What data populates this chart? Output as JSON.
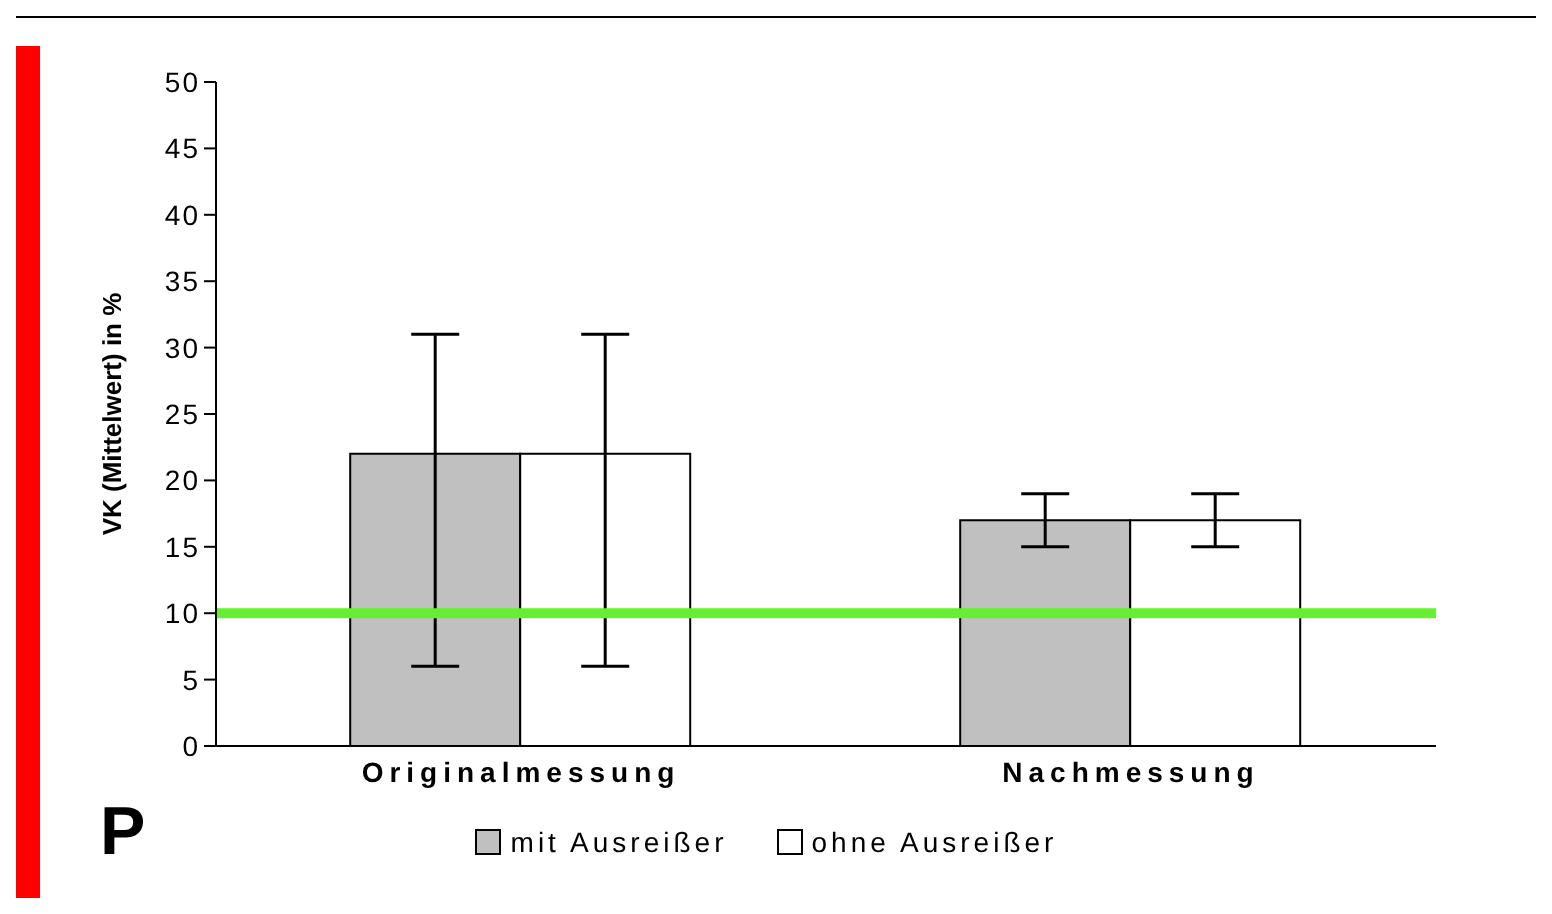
{
  "chart_data": {
    "type": "bar",
    "ylabel": "VK (Mittelwert) in %",
    "categories": [
      "Originalmessung",
      "Nachmessung"
    ],
    "series": [
      {
        "name": "mit Ausreißer",
        "color": "#c0c0c0",
        "values": [
          22,
          17
        ],
        "errors": [
          [
            6,
            31
          ],
          [
            15,
            19
          ]
        ]
      },
      {
        "name": "ohne Ausreißer",
        "color": "#ffffff",
        "values": [
          22,
          17
        ],
        "errors": [
          [
            6,
            31
          ],
          [
            15,
            19
          ]
        ]
      }
    ],
    "ylim": [
      0,
      50
    ],
    "yticks": [
      0,
      5,
      10,
      15,
      20,
      25,
      30,
      35,
      40,
      45,
      50
    ],
    "grid": false,
    "legend": "bottom",
    "ref_lines": [
      {
        "axis": "y",
        "value": 10,
        "label": null,
        "color": "#66ee33"
      }
    ],
    "annotations": [
      "P"
    ]
  }
}
